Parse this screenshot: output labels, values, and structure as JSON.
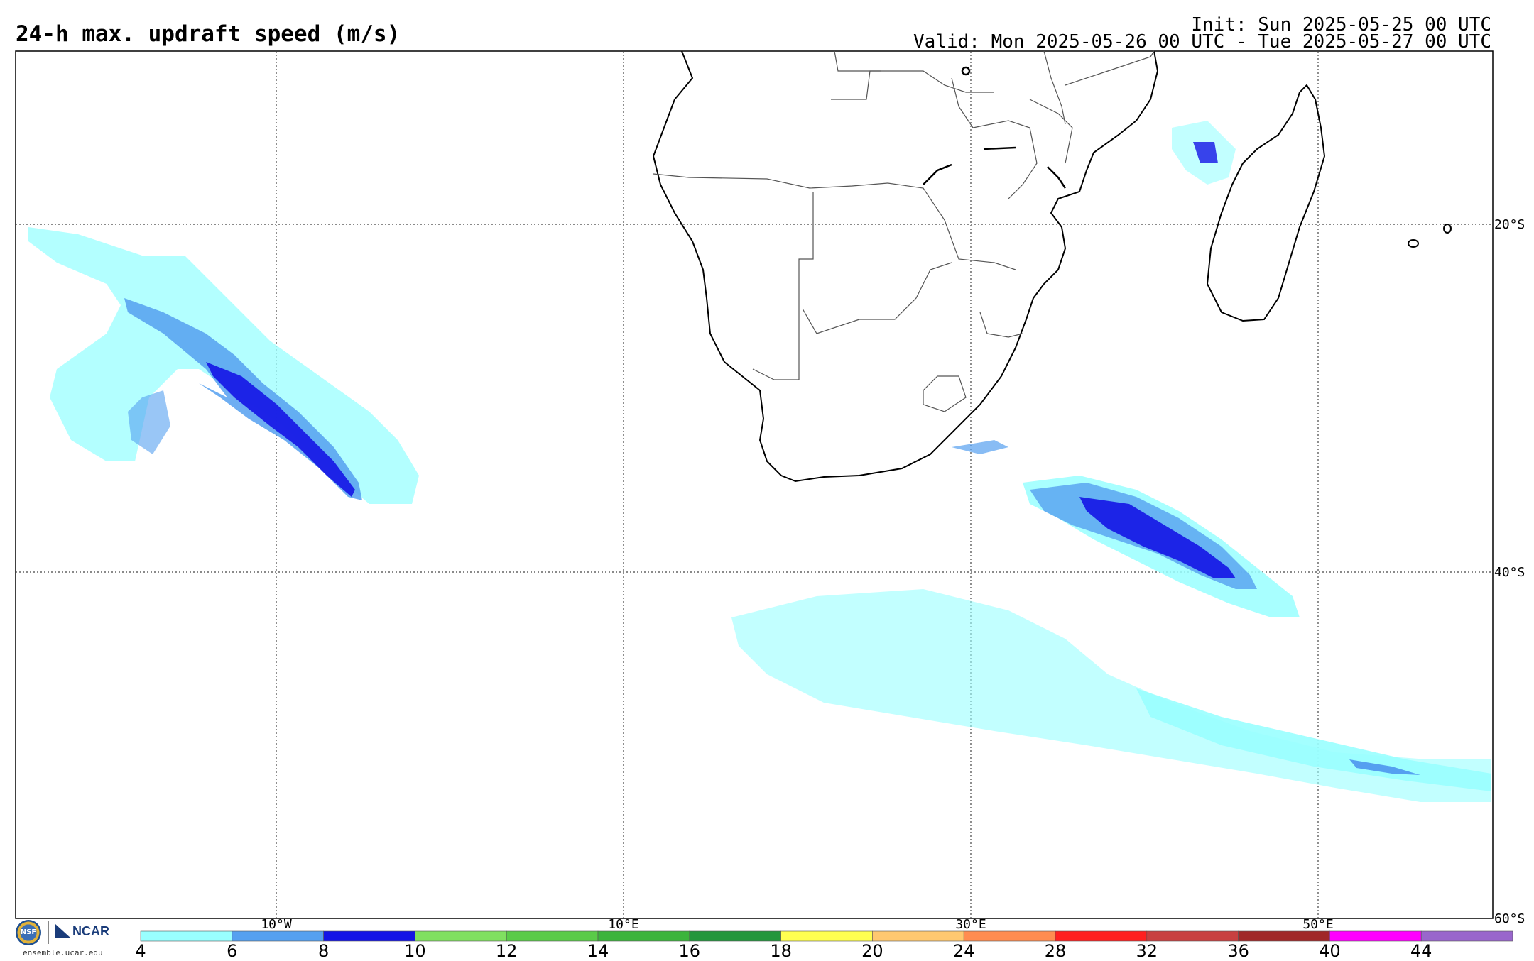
{
  "header": {
    "title": "24-h max. updraft speed (m/s)",
    "init": "Init: Sun 2025-05-25 00 UTC",
    "valid": "Valid: Mon 2025-05-26 00 UTC - Tue 2025-05-27 00 UTC"
  },
  "map": {
    "lon_labels": [
      "10°W",
      "10°E",
      "30°E",
      "50°E"
    ],
    "lat_labels": [
      "20°S",
      "40°S",
      "60°S"
    ],
    "gridline_style": "dotted"
  },
  "colorbar": {
    "labels": [
      "4",
      "6",
      "8",
      "10",
      "12",
      "14",
      "16",
      "18",
      "20",
      "24",
      "28",
      "32",
      "36",
      "40",
      "44"
    ],
    "colors": [
      "#99ffff",
      "#55a0f0",
      "#1414e6",
      "#80e060",
      "#5acb48",
      "#3cb43c",
      "#23963c",
      "#ffff50",
      "#ffc870",
      "#ff8c50",
      "#ff2020",
      "#c84040",
      "#a02828",
      "#ff00ff",
      "#9966cc"
    ]
  },
  "logos": {
    "nsf_text": "NSF",
    "ncar_text": "NCAR",
    "site": "ensemble.ucar.edu"
  }
}
